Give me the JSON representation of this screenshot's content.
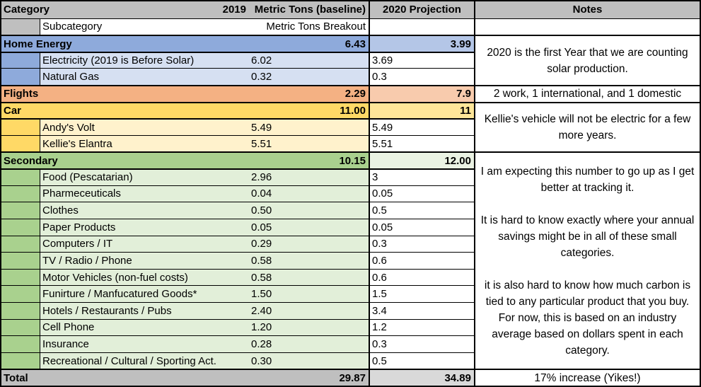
{
  "columns": {
    "category": "Category",
    "year2019": "2019",
    "baseline": "Metric Tons (baseline)",
    "subcategory": "Subcategory",
    "breakout": "Metric Tons Breakout",
    "projection": "2020 Projection",
    "notes": "Notes"
  },
  "sections": [
    {
      "name": "Home Energy",
      "total2019": "6.43",
      "total2020": "3.99",
      "note": "2020 is the first Year that we are counting solar production.",
      "rows": [
        {
          "name": "Electricity (2019 is Before Solar)",
          "v2019": "6.02",
          "v2020": "3.69"
        },
        {
          "name": "Natural Gas",
          "v2019": "0.32",
          "v2020": "0.3"
        }
      ]
    },
    {
      "name": "Flights",
      "total2019": "2.29",
      "total2020": "7.9",
      "note": "2 work, 1 international, and 1 domestic",
      "rows": []
    },
    {
      "name": "Car",
      "total2019": "11.00",
      "total2020": "11",
      "note": "Kellie's vehicle will not be electric for a few more years.",
      "rows": [
        {
          "name": "Andy's Volt",
          "v2019": "5.49",
          "v2020": "5.49"
        },
        {
          "name": "Kellie's Elantra",
          "v2019": "5.51",
          "v2020": "5.51"
        }
      ]
    },
    {
      "name": "Secondary",
      "total2019": "10.15",
      "total2020": "12.00",
      "note_paragraphs": [
        "I am expecting this number to go up as I get better at tracking it.",
        "It is hard to know exactly where your annual savings might be in all of these small categories.",
        "it is also hard to know how much carbon is tied to any particular product that you buy. For now, this is based on an industry average based on dollars spent in each category."
      ],
      "rows": [
        {
          "name": "Food (Pescatarian)",
          "v2019": "2.96",
          "v2020": "3"
        },
        {
          "name": "Pharmeceuticals",
          "v2019": "0.04",
          "v2020": "0.05"
        },
        {
          "name": "Clothes",
          "v2019": "0.50",
          "v2020": "0.5"
        },
        {
          "name": "Paper Products",
          "v2019": "0.05",
          "v2020": "0.05"
        },
        {
          "name": "Computers / IT",
          "v2019": "0.29",
          "v2020": "0.3"
        },
        {
          "name": "TV / Radio / Phone",
          "v2019": "0.58",
          "v2020": "0.6"
        },
        {
          "name": "Motor Vehicles (non-fuel costs)",
          "v2019": "0.58",
          "v2020": "0.6"
        },
        {
          "name": "Funirture / Manfucatured Goods*",
          "v2019": "1.50",
          "v2020": "1.5"
        },
        {
          "name": "Hotels / Restaurants / Pubs",
          "v2019": "2.40",
          "v2020": "3.4"
        },
        {
          "name": "Cell Phone",
          "v2019": "1.20",
          "v2020": "1.2"
        },
        {
          "name": "Insurance",
          "v2019": "0.28",
          "v2020": "0.3"
        },
        {
          "name": "Recreational / Cultural / Sporting Act.",
          "v2019": "0.30",
          "v2020": "0.5"
        }
      ]
    }
  ],
  "total": {
    "name": "Total",
    "v2019": "29.87",
    "v2020": "34.89",
    "note": "17% increase (Yikes!)"
  },
  "colors": {
    "header_gray": "#BFBFBF",
    "total_projection_gray": "#D9D9D9",
    "home_header": "#8EAADB",
    "home_sub": "#D6E0F2",
    "home_projection": "#B4C6E7",
    "flights_header": "#F4B183",
    "flights_projection": "#F8CBAD",
    "car_header": "#FFD966",
    "car_sub": "#FFF2CC",
    "car_projection": "#FFE699",
    "secondary_header": "#A9D18E",
    "secondary_sub": "#E2EFD9",
    "secondary_projection": "#EAF2E3",
    "border": "#000000"
  }
}
